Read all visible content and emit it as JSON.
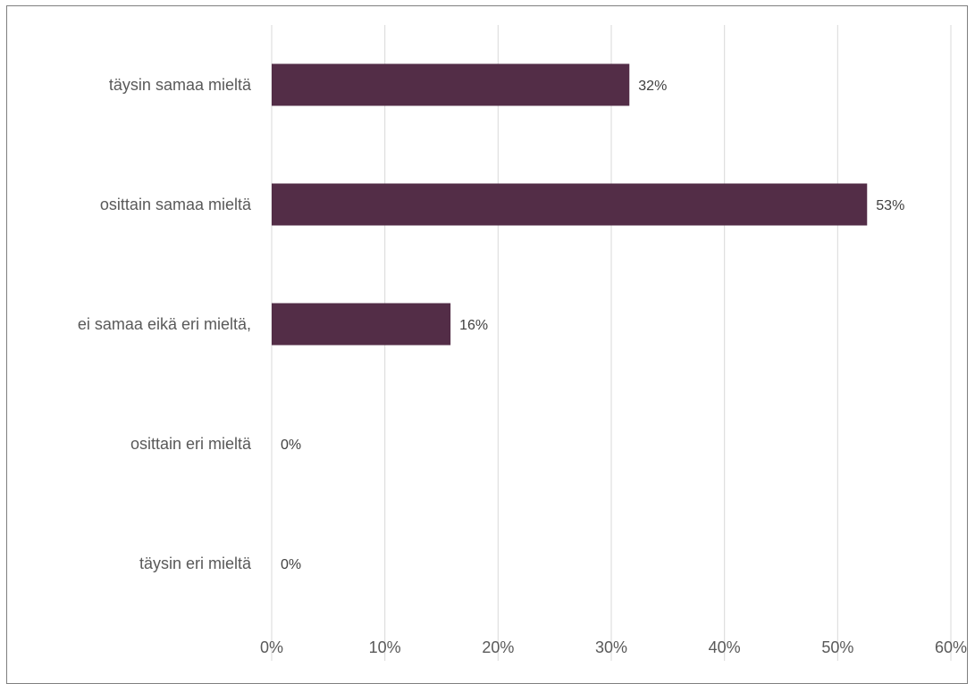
{
  "chart_data": {
    "type": "bar",
    "orientation": "horizontal",
    "categories": [
      "täysin samaa mieltä",
      "osittain samaa mieltä",
      "ei samaa eikä eri mieltä,",
      "osittain eri mieltä",
      "täysin eri mieltä"
    ],
    "values": [
      31.6,
      52.6,
      15.8,
      0,
      0
    ],
    "data_labels": [
      "32%",
      "53%",
      "16%",
      "0%",
      "0%"
    ],
    "xlim": [
      0,
      60
    ],
    "x_ticks": [
      "0%",
      "10%",
      "20%",
      "30%",
      "40%",
      "50%",
      "60%"
    ],
    "grid": true,
    "legend": "none",
    "bar_color": "#532d47",
    "grid_color": "#d9d9d9",
    "title": "",
    "xlabel": "",
    "ylabel": ""
  }
}
